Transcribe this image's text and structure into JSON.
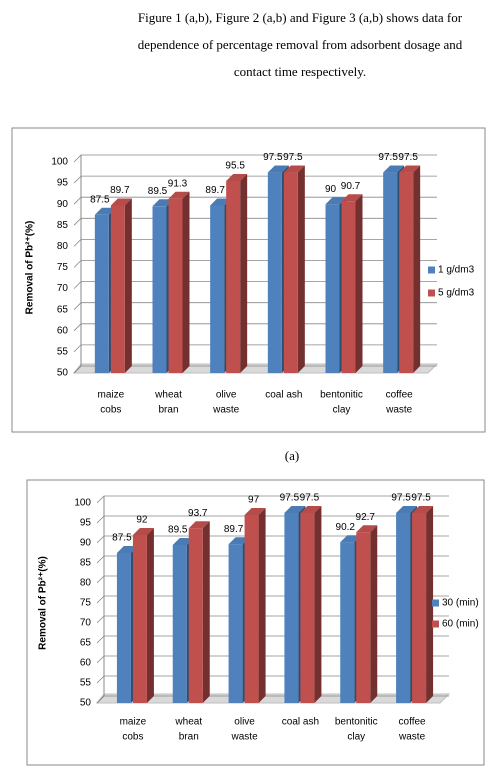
{
  "paragraph": {
    "lines": [
      "Figure 1 (a,b), Figure 2 (a,b) and Figure 3 (a,b) shows data for",
      "dependence of percentage removal from adsorbent dosage and",
      "contact time respectively."
    ]
  },
  "captions": [
    "(a)"
  ],
  "chart_data": [
    {
      "type": "bar",
      "y_label": "Removal of Pb²⁺(%)",
      "categories": [
        [
          "maize",
          "cobs"
        ],
        [
          "wheat",
          "bran"
        ],
        [
          "olive",
          "waste"
        ],
        [
          "coal ash"
        ],
        [
          "bentonitic",
          "clay"
        ],
        [
          "coffee",
          "waste"
        ]
      ],
      "series": [
        {
          "name": "1 g/dm3",
          "color": "#4f81bd",
          "values": [
            87.5,
            89.5,
            89.7,
            97.5,
            90,
            97.5
          ]
        },
        {
          "name": "5 g/dm3",
          "color": "#c0504d",
          "values": [
            89.7,
            91.3,
            95.5,
            97.5,
            90.7,
            97.5
          ]
        }
      ],
      "ylim": [
        50,
        100
      ],
      "yticks": [
        50,
        55,
        60,
        65,
        70,
        75,
        80,
        85,
        90,
        95,
        100
      ],
      "grid": true,
      "legend": "right"
    },
    {
      "type": "bar",
      "y_label": "Removal of Pb²⁺(%)",
      "categories": [
        [
          "maize",
          "cobs"
        ],
        [
          "wheat",
          "bran"
        ],
        [
          "olive",
          "waste"
        ],
        [
          "coal ash"
        ],
        [
          "bentonitic",
          "clay"
        ],
        [
          "coffee",
          "waste"
        ]
      ],
      "series": [
        {
          "name": "30 (min)",
          "color": "#4f81bd",
          "values": [
            87.5,
            89.5,
            89.7,
            97.5,
            90.2,
            97.5
          ]
        },
        {
          "name": "60 (min)",
          "color": "#c0504d",
          "values": [
            92,
            93.7,
            97,
            97.5,
            92.7,
            97.5
          ]
        }
      ],
      "ylim": [
        50,
        100
      ],
      "yticks": [
        50,
        55,
        60,
        65,
        70,
        75,
        80,
        85,
        90,
        95,
        100
      ],
      "grid": true,
      "legend": "right"
    }
  ]
}
